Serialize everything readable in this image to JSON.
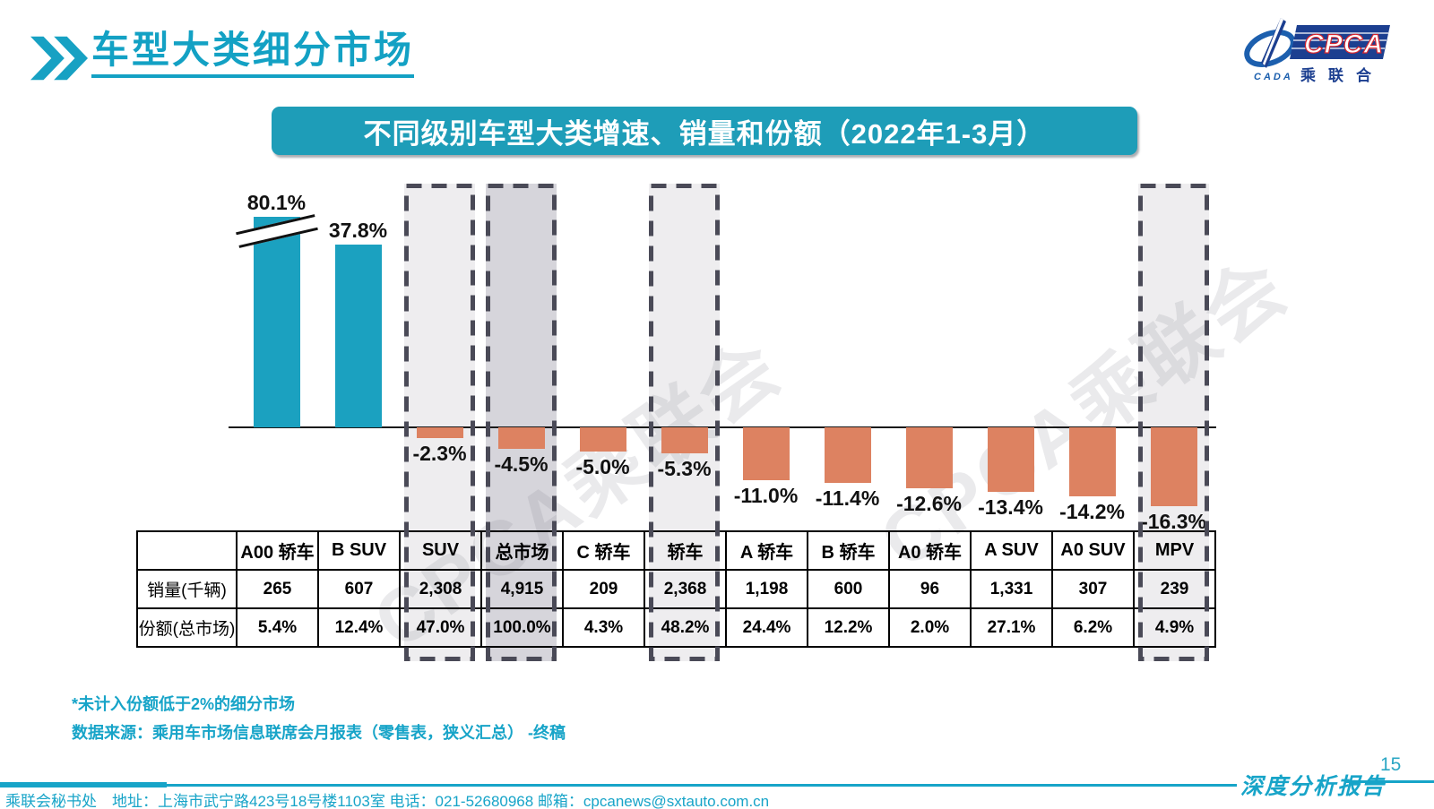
{
  "page": {
    "title": "车型大类细分市场"
  },
  "logo": {
    "cpca": "CPCA",
    "cada": "CADA",
    "association": "乘联合"
  },
  "banner": {
    "title": "不同级别车型大类增速、销量和份额（2022年1-3月）"
  },
  "chart_data": {
    "type": "bar",
    "title": "不同级别车型大类增速、销量和份额（2022年1-3月）",
    "categories": [
      "A00 轿车",
      "B SUV",
      "SUV",
      "总市场",
      "C 轿车",
      "轿车",
      "A 轿车",
      "B 轿车",
      "A0 轿车",
      "A SUV",
      "A0 SUV",
      "MPV"
    ],
    "series": [
      {
        "name": "增速(%)",
        "values": [
          80.1,
          37.8,
          -2.3,
          -4.5,
          -5.0,
          -5.3,
          -11.0,
          -11.4,
          -12.6,
          -13.4,
          -14.2,
          -16.3
        ],
        "labels": [
          "80.1%",
          "37.8%",
          "-2.3%",
          "-4.5%",
          "-5.0%",
          "-5.3%",
          "-11.0%",
          "-11.4%",
          "-12.6%",
          "-13.4%",
          "-14.2%",
          "-16.3%"
        ]
      },
      {
        "name": "销量(千辆)",
        "values": [
          265,
          607,
          2308,
          4915,
          209,
          2368,
          1198,
          600,
          96,
          1331,
          307,
          239
        ]
      },
      {
        "name": "份额(总市场)",
        "values": [
          5.4,
          12.4,
          47.0,
          100.0,
          4.3,
          48.2,
          24.4,
          12.2,
          2.0,
          27.1,
          6.2,
          4.9
        ]
      }
    ],
    "axis_break_category": "A00 轿车",
    "highlighted": [
      {
        "category": "SUV",
        "tone": "light"
      },
      {
        "category": "总市场",
        "tone": "dark"
      },
      {
        "category": "轿车",
        "tone": "light"
      },
      {
        "category": "MPV",
        "tone": "light"
      }
    ],
    "colors": {
      "positive_bar": "#1ba1c0",
      "negative_bar": "#dd8261",
      "highlight_light": "#eeedef",
      "highlight_dark": "#d6d5db",
      "dashed_border": "#4a4a57"
    },
    "grid": false,
    "legend_position": "none"
  },
  "table": {
    "row_headers": [
      "销量(千辆)",
      "份额(总市场)"
    ],
    "columns": [
      "A00 轿车",
      "B SUV",
      "SUV",
      "总市场",
      "C 轿车",
      "轿车",
      "A 轿车",
      "B 轿车",
      "A0 轿车",
      "A SUV",
      "A0 SUV",
      "MPV"
    ],
    "sales": [
      "265",
      "607",
      "2,308",
      "4,915",
      "209",
      "2,368",
      "1,198",
      "600",
      "96",
      "1,331",
      "307",
      "239"
    ],
    "share": [
      "5.4%",
      "12.4%",
      "47.0%",
      "100.0%",
      "4.3%",
      "48.2%",
      "24.4%",
      "12.2%",
      "2.0%",
      "27.1%",
      "6.2%",
      "4.9%"
    ]
  },
  "notes": {
    "footnote": "*未计入份额低于2%的细分市场",
    "source": "数据来源：乘用车市场信息联席会月报表（零售表，狭义汇总） -终稿"
  },
  "watermark": {
    "text": "CPCA乘联会"
  },
  "footer": {
    "address": "乘联会秘书处　地址：上海市武宁路423号18号楼1103室  电话：021-52680968   邮箱：cpcanews@sxtauto.com.cn",
    "report_label": "深度分析报告",
    "page_number": "15"
  }
}
